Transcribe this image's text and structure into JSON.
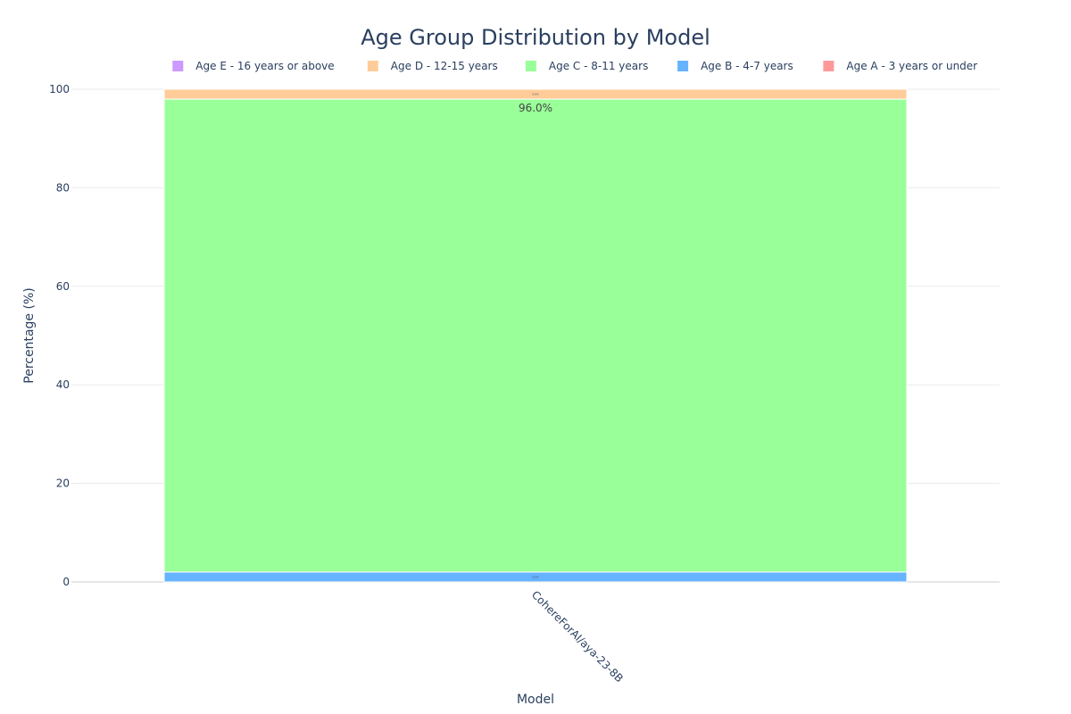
{
  "chart_data": {
    "type": "bar",
    "stacked": true,
    "title": "Age Group Distribution by Model",
    "xlabel": "Model",
    "ylabel": "Percentage (%)",
    "ylim": [
      0,
      100
    ],
    "yticks": [
      0,
      20,
      40,
      60,
      80,
      100
    ],
    "grid": true,
    "legend_position": "top-right",
    "categories": [
      "CohereForAI/aya-23-8B"
    ],
    "series": [
      {
        "name": "Age A - 3 years or under",
        "color": "#ff9999",
        "values": [
          0
        ],
        "labels": [
          ""
        ]
      },
      {
        "name": "Age B - 4-7 years",
        "color": "#66b3ff",
        "values": [
          2.0
        ],
        "labels": [
          "2.0%"
        ]
      },
      {
        "name": "Age C - 8-11 years",
        "color": "#99ff99",
        "values": [
          96.0
        ],
        "labels": [
          "96.0%"
        ]
      },
      {
        "name": "Age D - 12-15 years",
        "color": "#ffcc99",
        "values": [
          2.0
        ],
        "labels": [
          "2.0%"
        ]
      },
      {
        "name": "Age E - 16 years or above",
        "color": "#cc99ff",
        "values": [
          0
        ],
        "labels": [
          ""
        ]
      }
    ],
    "legend_order": [
      4,
      3,
      2,
      1,
      0
    ]
  }
}
